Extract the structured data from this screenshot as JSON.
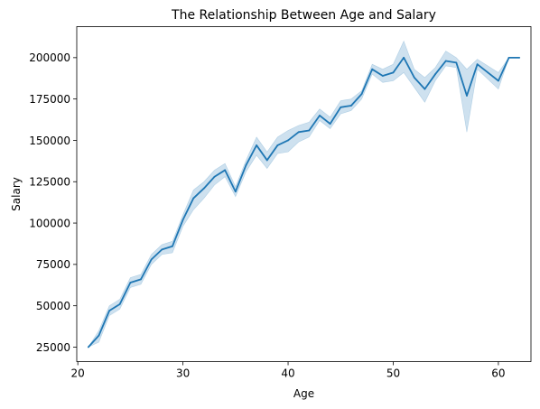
{
  "chart_data": {
    "type": "line",
    "title": "The Relationship Between Age and Salary",
    "xlabel": "Age",
    "ylabel": "Salary",
    "xlim": [
      19.9,
      63.1
    ],
    "ylim": [
      16250,
      218750
    ],
    "x_ticks": [
      20,
      30,
      40,
      50,
      60
    ],
    "y_ticks": [
      25000,
      50000,
      75000,
      100000,
      125000,
      150000,
      175000,
      200000
    ],
    "grid": false,
    "legend": "none",
    "line_color": "#1f77b4",
    "band_color": "#1f77b4",
    "series": [
      {
        "x": [
          21,
          22,
          23,
          24,
          25,
          26,
          27,
          28,
          29,
          30,
          31,
          32,
          33,
          34,
          35,
          36,
          37,
          38,
          39,
          40,
          41,
          42,
          43,
          44,
          45,
          46,
          47,
          48,
          49,
          50,
          51,
          52,
          53,
          54,
          55,
          56,
          57,
          58,
          59,
          60,
          61,
          62
        ],
        "values": [
          25000,
          32000,
          47000,
          51000,
          64000,
          66000,
          78000,
          84000,
          86000,
          102000,
          115000,
          121000,
          128000,
          132000,
          119000,
          135000,
          147000,
          138000,
          147000,
          150000,
          155000,
          156000,
          165000,
          160000,
          170000,
          171000,
          178000,
          193000,
          189000,
          191000,
          200000,
          188000,
          181000,
          190000,
          198000,
          197000,
          177000,
          196000,
          191000,
          186000,
          200000,
          200000
        ],
        "ci_lower": [
          25000,
          28000,
          44000,
          48000,
          61000,
          63000,
          75000,
          81000,
          82000,
          98000,
          108000,
          115000,
          123000,
          128000,
          116000,
          131000,
          141000,
          133000,
          142000,
          143000,
          149000,
          152000,
          162000,
          157000,
          166000,
          168000,
          175000,
          190000,
          185000,
          186000,
          191000,
          182000,
          173000,
          186000,
          195000,
          194000,
          155000,
          193000,
          187000,
          181000,
          200000,
          200000
        ],
        "ci_upper": [
          25000,
          35000,
          50000,
          54000,
          67000,
          69000,
          81000,
          87000,
          89000,
          105000,
          120000,
          125000,
          132000,
          136000,
          122000,
          138000,
          152000,
          143000,
          152000,
          156000,
          159000,
          161000,
          169000,
          164000,
          174000,
          175000,
          180000,
          196000,
          193000,
          196000,
          210000,
          193000,
          188000,
          194000,
          204000,
          200000,
          193000,
          199000,
          195000,
          191000,
          200000,
          200000
        ]
      }
    ]
  }
}
